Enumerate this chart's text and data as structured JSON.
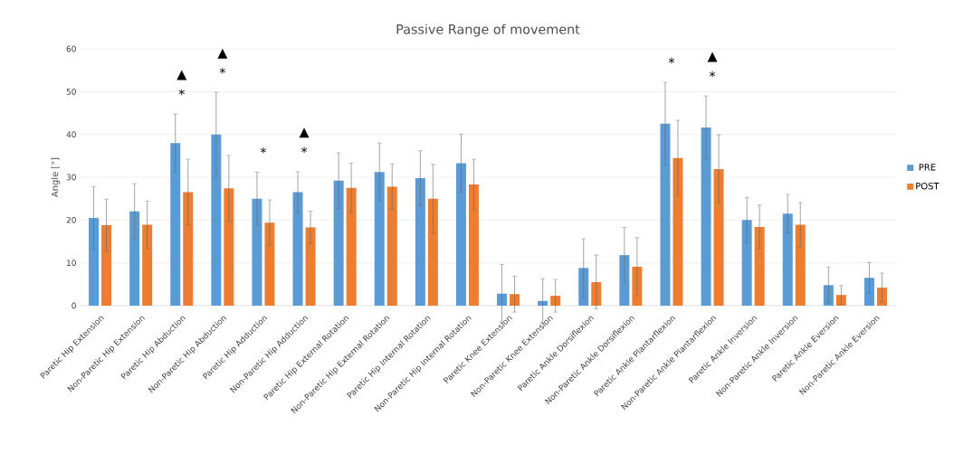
{
  "chart_data": {
    "type": "bar",
    "title": "Passive Range of movement",
    "ylabel": "Angle [°]",
    "categories": [
      "Paretic Hip Extension",
      "Non-Paretic Hip Extension",
      "Paretic Hip Abduction",
      "Non-Paretic Hip Abduction",
      "Paretic Hip Adduction",
      "Non-Paretic Hip Adduction",
      "Paretic Hip External Rotation",
      "Non-Paretic Hip External Rotation",
      "Paretic Hip Internal Rotation",
      "Non-Paretic Hip Internal Rotation",
      "Paretic Knee Extension",
      "Non-Paretic Knee Extension",
      "Paretic Ankle Dorsiflexion",
      "Non-Paretic Ankle Dorsiflexion",
      "Paretic Ankle Plantarflexion",
      "Non-Paretic Ankle Plantarflexion",
      "Paretic Ankle Inversion",
      "Non-Paretic Ankle Inversion",
      "Paretic Ankle Eversion",
      "Non-Paretic Ankle Eversion"
    ],
    "series": [
      {
        "name": "PRE",
        "color": "#5b9bd5",
        "values": [
          20.5,
          22,
          38,
          40,
          25,
          26.5,
          29.2,
          31.2,
          29.8,
          33.3,
          2.8,
          1.1,
          8.8,
          11.8,
          42.5,
          41.6,
          20,
          21.5,
          4.8,
          6.5
        ],
        "errors": [
          7.3,
          6.5,
          6.8,
          9.8,
          6.2,
          4.8,
          6.5,
          6.8,
          6.4,
          6.8,
          6.8,
          5.2,
          6.8,
          6.5,
          9.7,
          7.4,
          5.3,
          4.5,
          4.2,
          3.6
        ]
      },
      {
        "name": "POST",
        "color": "#ed7d31",
        "values": [
          18.8,
          18.9,
          26.5,
          27.4,
          19.4,
          18.3,
          27.5,
          27.8,
          25.0,
          28.3,
          2.7,
          2.3,
          5.5,
          9.1,
          34.5,
          31.9,
          18.4,
          18.9,
          2.5,
          4.2
        ],
        "errors": [
          6.1,
          5.5,
          7.7,
          7.7,
          5.3,
          3.8,
          5.8,
          5.3,
          8.0,
          5.9,
          4.2,
          3.8,
          6.3,
          6.8,
          8.8,
          8.0,
          5.1,
          5.2,
          2.2,
          3.4
        ]
      }
    ],
    "ylim": [
      0,
      60
    ],
    "yticks": [
      0,
      10,
      20,
      30,
      40,
      50,
      60
    ],
    "grid": "y",
    "legend": "right",
    "annotations": [
      "*",
      "▲",
      "*",
      "▲",
      "*",
      "*",
      "▲",
      "*",
      "*",
      "▲"
    ]
  }
}
